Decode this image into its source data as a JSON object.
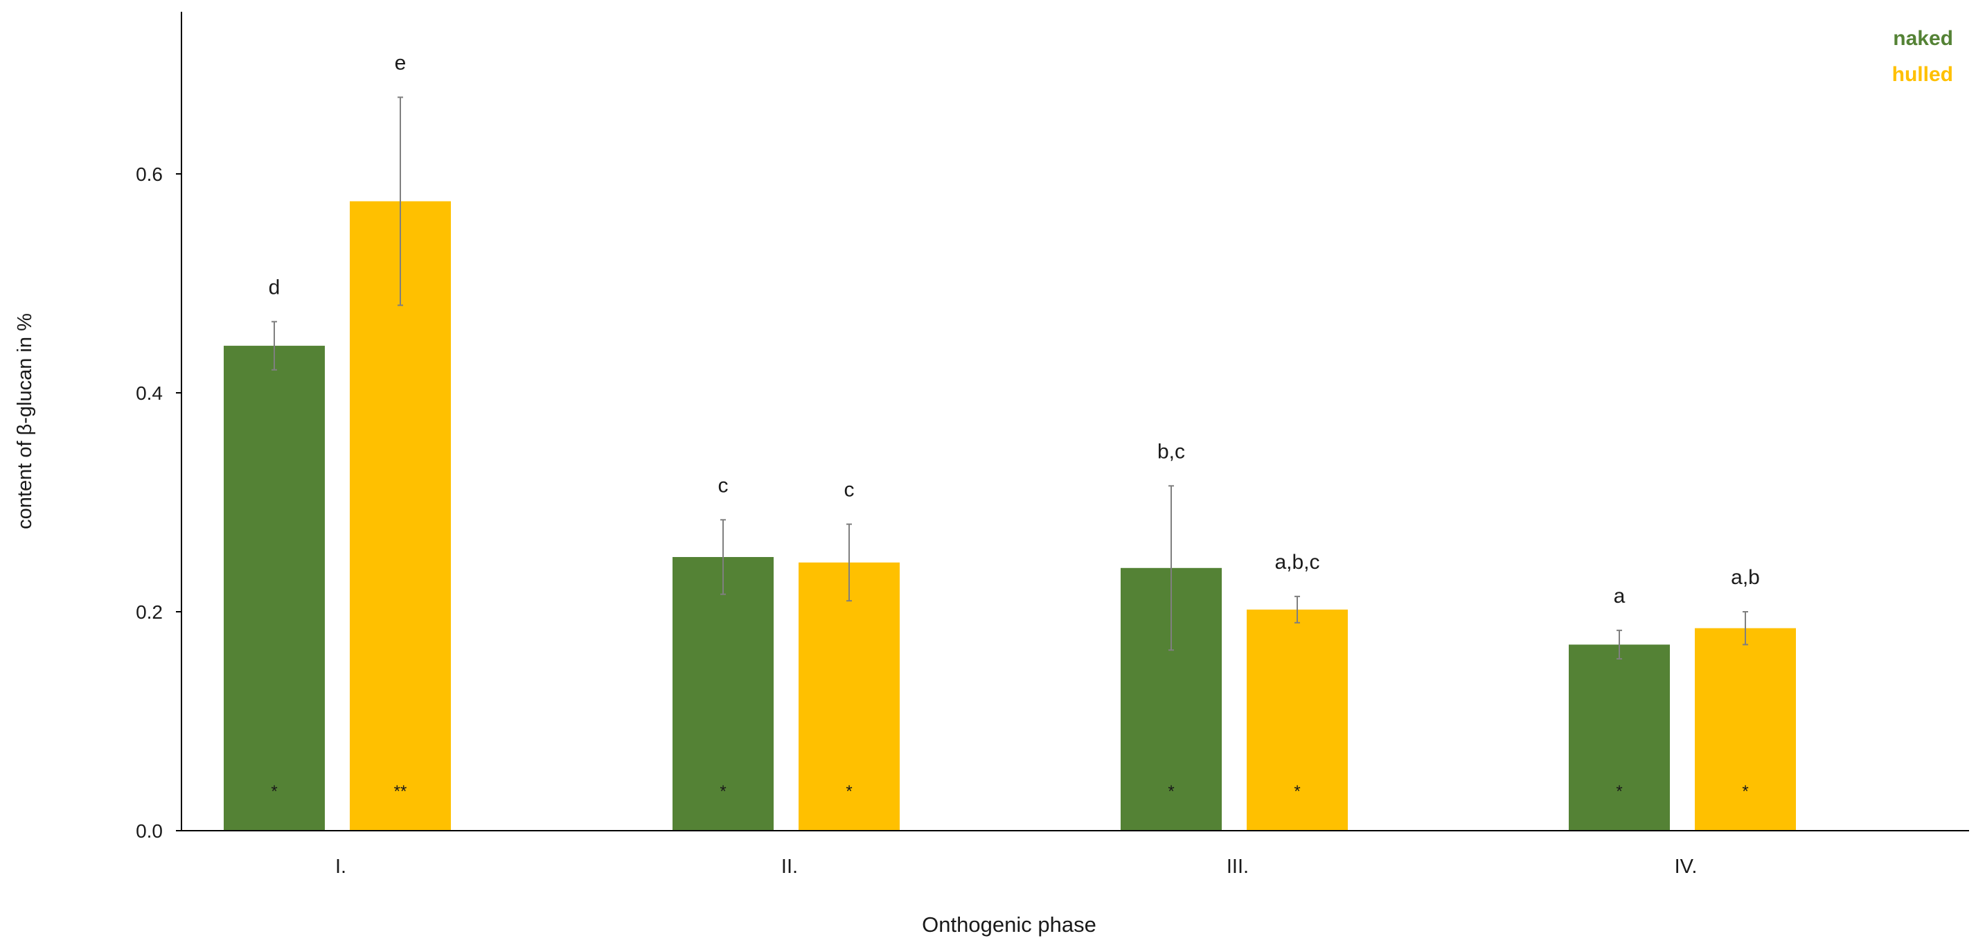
{
  "chart_data": {
    "type": "bar",
    "title": "",
    "xlabel": "Onthogenic phase",
    "ylabel": "content of β-glucan in %",
    "categories": [
      "I.",
      "II.",
      "III.",
      "IV."
    ],
    "ylim": [
      0,
      0.76
    ],
    "yticks": [
      0.0,
      0.2,
      0.4,
      0.6
    ],
    "ytick_labels": [
      "0.0",
      "0.2",
      "0.4",
      "0.6"
    ],
    "grid": false,
    "legend_position": "top-right",
    "series": [
      {
        "name": "naked",
        "color": "#548235",
        "values": [
          0.443,
          0.25,
          0.24,
          0.17
        ],
        "errors": [
          0.022,
          0.034,
          0.075,
          0.013
        ],
        "letters": [
          "d",
          "c",
          "b,c",
          "a"
        ],
        "stars": [
          "*",
          "*",
          "*",
          "*"
        ]
      },
      {
        "name": "hulled",
        "color": "#ffc000",
        "values": [
          0.575,
          0.245,
          0.202,
          0.185
        ],
        "errors": [
          0.095,
          0.035,
          0.012,
          0.015
        ],
        "letters": [
          "e",
          "c",
          "a,b,c",
          "a,b"
        ],
        "stars": [
          "**",
          "*",
          "*",
          "*"
        ]
      }
    ]
  }
}
